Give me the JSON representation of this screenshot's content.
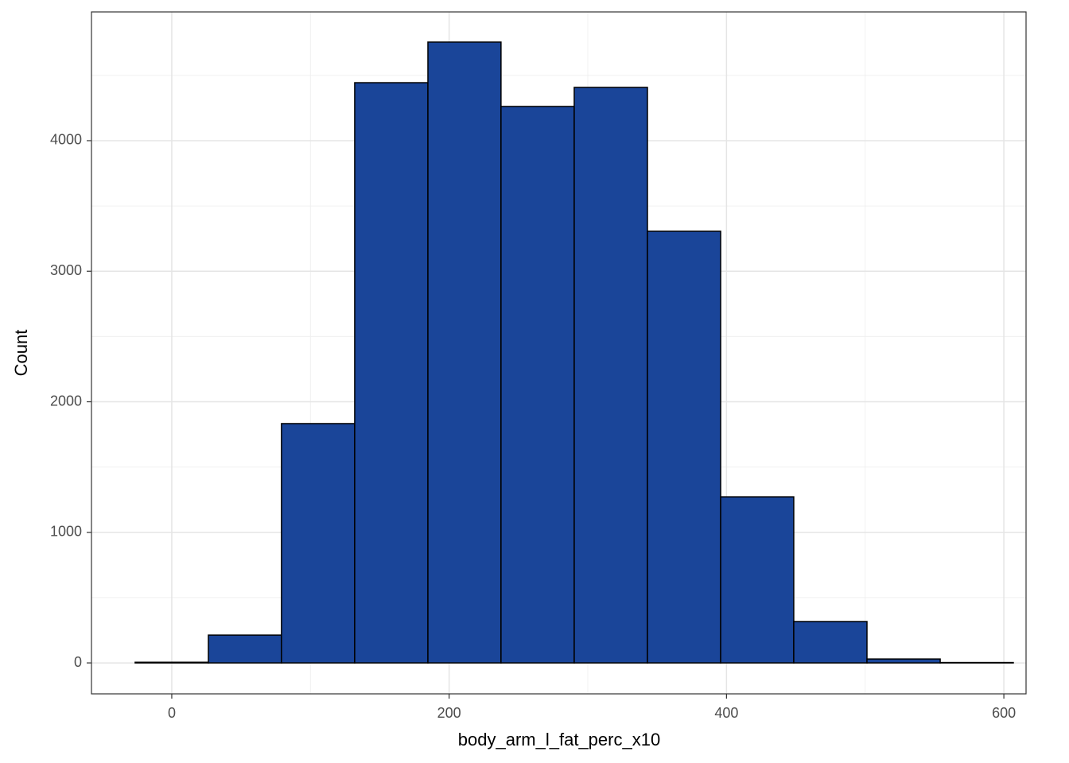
{
  "chart_data": {
    "type": "histogram",
    "x_label": "body_arm_l_fat_perc_x10",
    "y_label": "Count",
    "bins": [
      -26.4,
      26.4,
      79.1,
      131.9,
      184.7,
      237.4,
      290.2,
      343.0,
      395.8,
      448.5,
      501.3,
      554.1,
      606.8
    ],
    "values": [
      5,
      213,
      1833,
      4444,
      4755,
      4262,
      4408,
      3306,
      1272,
      317,
      30,
      3
    ],
    "color": "#1a4599",
    "edge_color": "#000000",
    "xlim": [
      -57.9,
      616
    ],
    "ylim": [
      -237,
      4986
    ],
    "xticks": [
      0,
      200,
      400,
      600
    ],
    "yticks": [
      0,
      1000,
      2000,
      3000,
      4000
    ],
    "xminor": [
      100,
      300,
      500
    ],
    "yminor": [
      500,
      1500,
      2500,
      3500,
      4500
    ],
    "grid": true
  }
}
